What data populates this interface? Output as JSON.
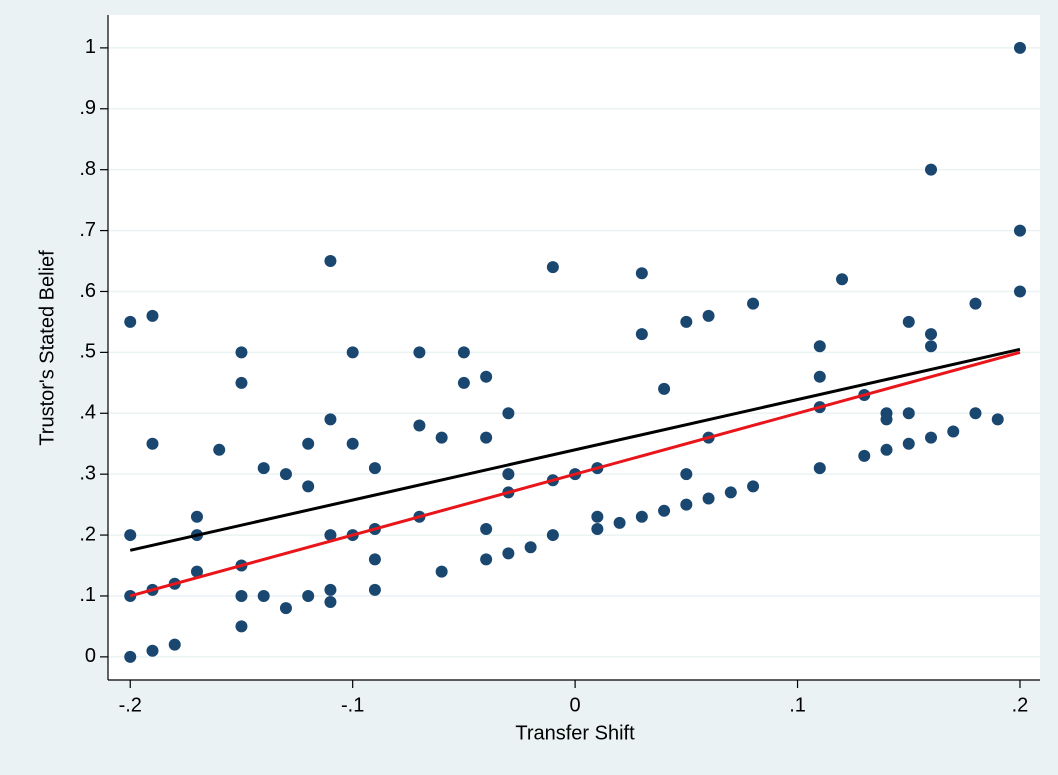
{
  "chart_data": {
    "type": "scatter",
    "x_label": "Transfer Shift",
    "y_label": "Trustor's Stated Belief",
    "xlim": [
      -0.21,
      0.209
    ],
    "ylim": [
      -0.038,
      1.054
    ],
    "xticks": [
      {
        "value": -0.2,
        "label": "-.2"
      },
      {
        "value": -0.1,
        "label": "-.1"
      },
      0,
      {
        "value": 0.1,
        "label": ".1"
      },
      {
        "value": 0.2,
        "label": ".2"
      }
    ],
    "yticks": [
      0,
      {
        "value": 0.1,
        "label": ".1"
      },
      {
        "value": 0.2,
        "label": ".2"
      },
      {
        "value": 0.3,
        "label": ".3"
      },
      {
        "value": 0.4,
        "label": ".4"
      },
      {
        "value": 0.5,
        "label": ".5"
      },
      {
        "value": 0.6,
        "label": ".6"
      },
      {
        "value": 0.7,
        "label": ".7"
      },
      {
        "value": 0.8,
        "label": ".8"
      },
      {
        "value": 0.9,
        "label": ".9"
      },
      1
    ],
    "grid": true,
    "series": [
      {
        "type": "scatter",
        "color": "#1a476f",
        "x": [
          -0.2,
          -0.2,
          -0.2,
          -0.2,
          -0.19,
          -0.19,
          -0.19,
          -0.19,
          -0.18,
          -0.18,
          -0.17,
          -0.17,
          -0.17,
          -0.16,
          -0.15,
          -0.15,
          -0.15,
          -0.15,
          -0.15,
          -0.14,
          -0.14,
          -0.13,
          -0.13,
          -0.12,
          -0.12,
          -0.12,
          -0.11,
          -0.11,
          -0.11,
          -0.11,
          -0.11,
          -0.1,
          -0.1,
          -0.1,
          -0.09,
          -0.09,
          -0.09,
          -0.09,
          -0.07,
          -0.07,
          -0.07,
          -0.06,
          -0.06,
          -0.05,
          -0.05,
          -0.04,
          -0.04,
          -0.04,
          -0.04,
          -0.03,
          -0.03,
          -0.03,
          -0.03,
          -0.02,
          -0.01,
          -0.01,
          -0.01,
          0,
          0.01,
          0.01,
          0.01,
          0.02,
          0.03,
          0.03,
          0.03,
          0.04,
          0.04,
          0.05,
          0.05,
          0.05,
          0.06,
          0.06,
          0.06,
          0.07,
          0.08,
          0.08,
          0.11,
          0.11,
          0.11,
          0.11,
          0.12,
          0.13,
          0.13,
          0.14,
          0.14,
          0.14,
          0.15,
          0.15,
          0.15,
          0.16,
          0.16,
          0.16,
          0.16,
          0.17,
          0.18,
          0.18,
          0.19,
          0.2,
          0.2,
          0.2
        ],
        "values": [
          0.55,
          0.2,
          0.1,
          0,
          0.56,
          0.35,
          0.11,
          0.01,
          0.12,
          0.02,
          0.23,
          0.2,
          0.14,
          0.34,
          0.5,
          0.45,
          0.15,
          0.1,
          0.05,
          0.31,
          0.1,
          0.3,
          0.08,
          0.35,
          0.28,
          0.1,
          0.65,
          0.39,
          0.2,
          0.11,
          0.09,
          0.5,
          0.35,
          0.2,
          0.31,
          0.21,
          0.16,
          0.11,
          0.5,
          0.38,
          0.23,
          0.36,
          0.14,
          0.5,
          0.45,
          0.46,
          0.36,
          0.21,
          0.16,
          0.4,
          0.3,
          0.27,
          0.17,
          0.18,
          0.64,
          0.29,
          0.2,
          0.3,
          0.31,
          0.23,
          0.21,
          0.22,
          0.63,
          0.53,
          0.23,
          0.44,
          0.24,
          0.55,
          0.3,
          0.25,
          0.56,
          0.36,
          0.26,
          0.27,
          0.58,
          0.28,
          0.51,
          0.46,
          0.41,
          0.31,
          0.62,
          0.43,
          0.33,
          0.4,
          0.39,
          0.34,
          0.55,
          0.4,
          0.35,
          0.8,
          0.53,
          0.51,
          0.36,
          0.37,
          0.58,
          0.4,
          0.39,
          1,
          0.7,
          0.6
        ]
      },
      {
        "type": "line",
        "color": "#000000",
        "x": [
          -0.2,
          0.2
        ],
        "values": [
          0.175,
          0.505
        ]
      },
      {
        "type": "line",
        "color": "#e8151b",
        "x": [
          -0.2,
          0.2
        ],
        "values": [
          0.1,
          0.5
        ]
      }
    ]
  }
}
